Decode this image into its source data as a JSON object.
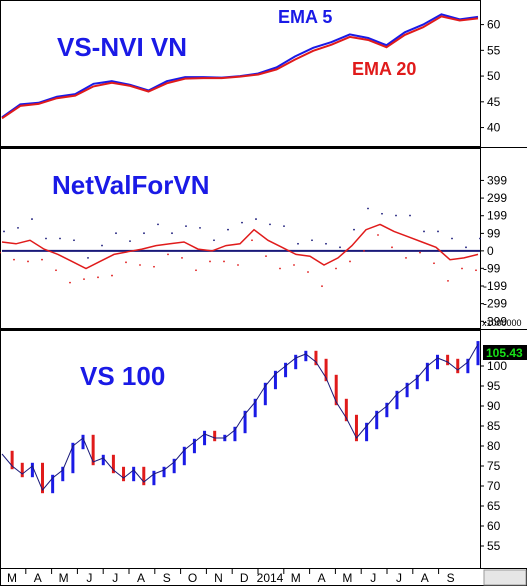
{
  "colors": {
    "blue": "#1a1ae6",
    "red": "#e01b1b",
    "navy": "#1a1a7a",
    "grid": "#000000",
    "value_box_bg": "#000000",
    "value_box_fg": "#18e018"
  },
  "chart_data": [
    {
      "type": "line",
      "title": "VS-NVI VN",
      "ylim": [
        37,
        64
      ],
      "y_ticks": [
        "60",
        "55",
        "50",
        "45",
        "40"
      ],
      "y_tick_values": [
        60,
        55,
        50,
        45,
        40
      ],
      "grid": false,
      "series": [
        {
          "name": "EMA 5",
          "color": "#1a1ae6",
          "values": [
            42,
            44.5,
            44.8,
            46,
            46.5,
            48.5,
            49,
            48.3,
            47.2,
            49,
            49.8,
            49.8,
            49.7,
            50,
            50.5,
            51.7,
            53.8,
            55.5,
            56.6,
            58.1,
            57.4,
            56,
            58.5,
            60,
            62,
            61,
            61.5
          ]
        },
        {
          "name": "EMA 20",
          "color": "#e01b1b",
          "values": [
            41.8,
            44.2,
            44.6,
            45.7,
            46.2,
            48,
            48.7,
            48.1,
            47,
            48.6,
            49.5,
            49.6,
            49.6,
            49.9,
            50.3,
            51.3,
            53.2,
            54.9,
            56.1,
            57.6,
            57,
            55.6,
            58,
            59.5,
            61.6,
            60.8,
            61.2
          ]
        }
      ]
    },
    {
      "type": "line",
      "title": "NetValForVN",
      "ylim": [
        -420,
        560
      ],
      "y_ticks": [
        "399",
        "299",
        "199",
        "99",
        "0",
        "-99",
        "-199",
        "-299",
        "-399"
      ],
      "y_tick_values": [
        399,
        299,
        199,
        99,
        0,
        -99,
        -199,
        -299,
        -399
      ],
      "multiplier_label": "x1000000",
      "zero_line": 0,
      "series": [
        {
          "name": "",
          "color": "#e01b1b",
          "values": [
            50,
            40,
            60,
            10,
            -20,
            -60,
            -100,
            -60,
            -20,
            -5,
            10,
            30,
            40,
            50,
            10,
            0,
            30,
            40,
            120,
            60,
            20,
            -20,
            -30,
            -80,
            -40,
            30,
            120,
            150,
            110,
            80,
            50,
            20,
            -50,
            -40,
            -20
          ]
        }
      ]
    },
    {
      "type": "candlestick",
      "title": "VS 100",
      "ylim": [
        50,
        108
      ],
      "y_ticks": [
        "100",
        "95",
        "90",
        "85",
        "80",
        "75",
        "70",
        "65",
        "60",
        "55"
      ],
      "y_tick_values": [
        100,
        95,
        90,
        85,
        80,
        75,
        70,
        65,
        60,
        55
      ],
      "last_value": "105.43",
      "last_value_num": 105.43,
      "series": [
        {
          "name": "",
          "values": [
            78,
            75,
            73,
            75,
            69,
            72,
            74,
            80,
            82,
            76,
            77,
            74,
            72,
            74,
            71,
            73,
            74,
            76,
            79,
            81,
            83,
            82,
            82,
            84,
            88,
            91,
            95,
            98,
            100,
            102,
            103,
            101,
            97,
            91,
            87,
            82,
            85,
            88,
            90,
            93,
            95,
            97,
            100,
            102,
            101,
            99,
            101,
            105.43
          ]
        }
      ]
    }
  ],
  "x_axis": {
    "labels": [
      "M",
      "A",
      "M",
      "J",
      "J",
      "A",
      "S",
      "O",
      "N",
      "D",
      "2014",
      "M",
      "A",
      "M",
      "J",
      "J",
      "A",
      "S"
    ]
  }
}
